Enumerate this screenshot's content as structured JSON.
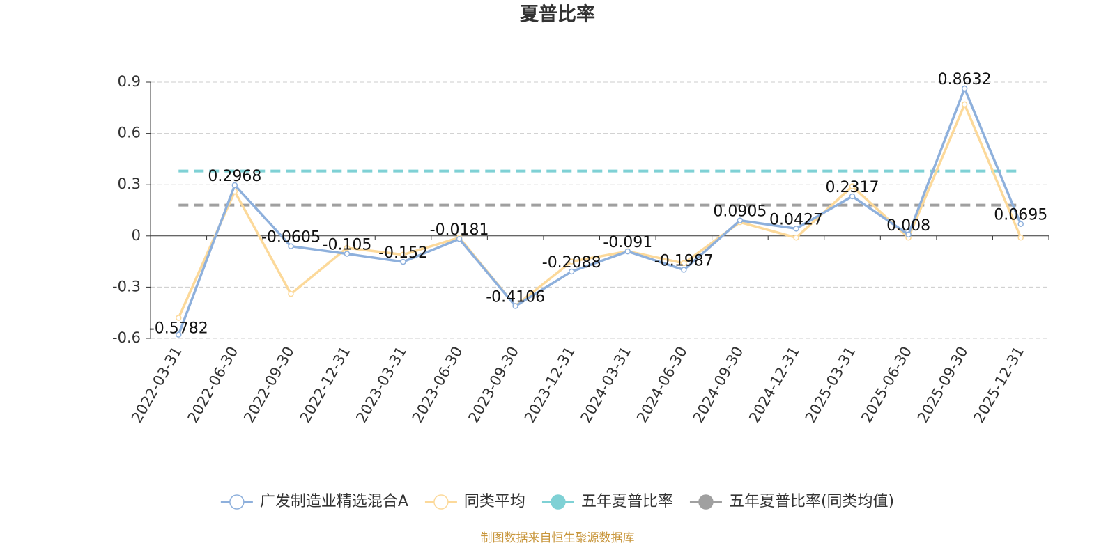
{
  "chart_data": {
    "type": "line",
    "title": "夏普比率",
    "categories": [
      "2022-03-31",
      "2022-06-30",
      "2022-09-30",
      "2022-12-31",
      "2023-03-31",
      "2023-06-30",
      "2023-09-30",
      "2023-12-31",
      "2024-03-31",
      "2024-06-30",
      "2024-09-30",
      "2024-12-31",
      "2025-03-31",
      "2025-06-30",
      "2025-09-30",
      "2025-12-31"
    ],
    "series": [
      {
        "name": "广发制造业精选混合A",
        "color": "#8eb0dc",
        "values": [
          -0.5782,
          0.2968,
          -0.0605,
          -0.105,
          -0.152,
          -0.0181,
          -0.4106,
          -0.2088,
          -0.091,
          -0.1987,
          0.0905,
          0.0427,
          0.2317,
          0.008,
          0.8632,
          0.0695
        ],
        "show_labels": true
      },
      {
        "name": "同类平均",
        "color": "#fcd99a",
        "values": [
          -0.48,
          0.26,
          -0.34,
          -0.07,
          -0.11,
          -0.01,
          -0.41,
          -0.15,
          -0.09,
          -0.16,
          0.08,
          -0.01,
          0.29,
          -0.01,
          0.77,
          -0.01
        ],
        "show_labels": false
      },
      {
        "name": "五年夏普比率",
        "color": "#7fd1d5",
        "value": 0.38,
        "style": "dashed"
      },
      {
        "name": "五年夏普比率(同类均值)",
        "color": "#a0a0a0",
        "value": 0.18,
        "style": "dashed"
      }
    ],
    "ylim": [
      -0.6,
      0.9
    ],
    "yticks": [
      -0.6,
      -0.3,
      0,
      0.3,
      0.6,
      0.9
    ],
    "grid": true,
    "legend": "bottom",
    "source": "制图数据来自恒生聚源数据库"
  }
}
